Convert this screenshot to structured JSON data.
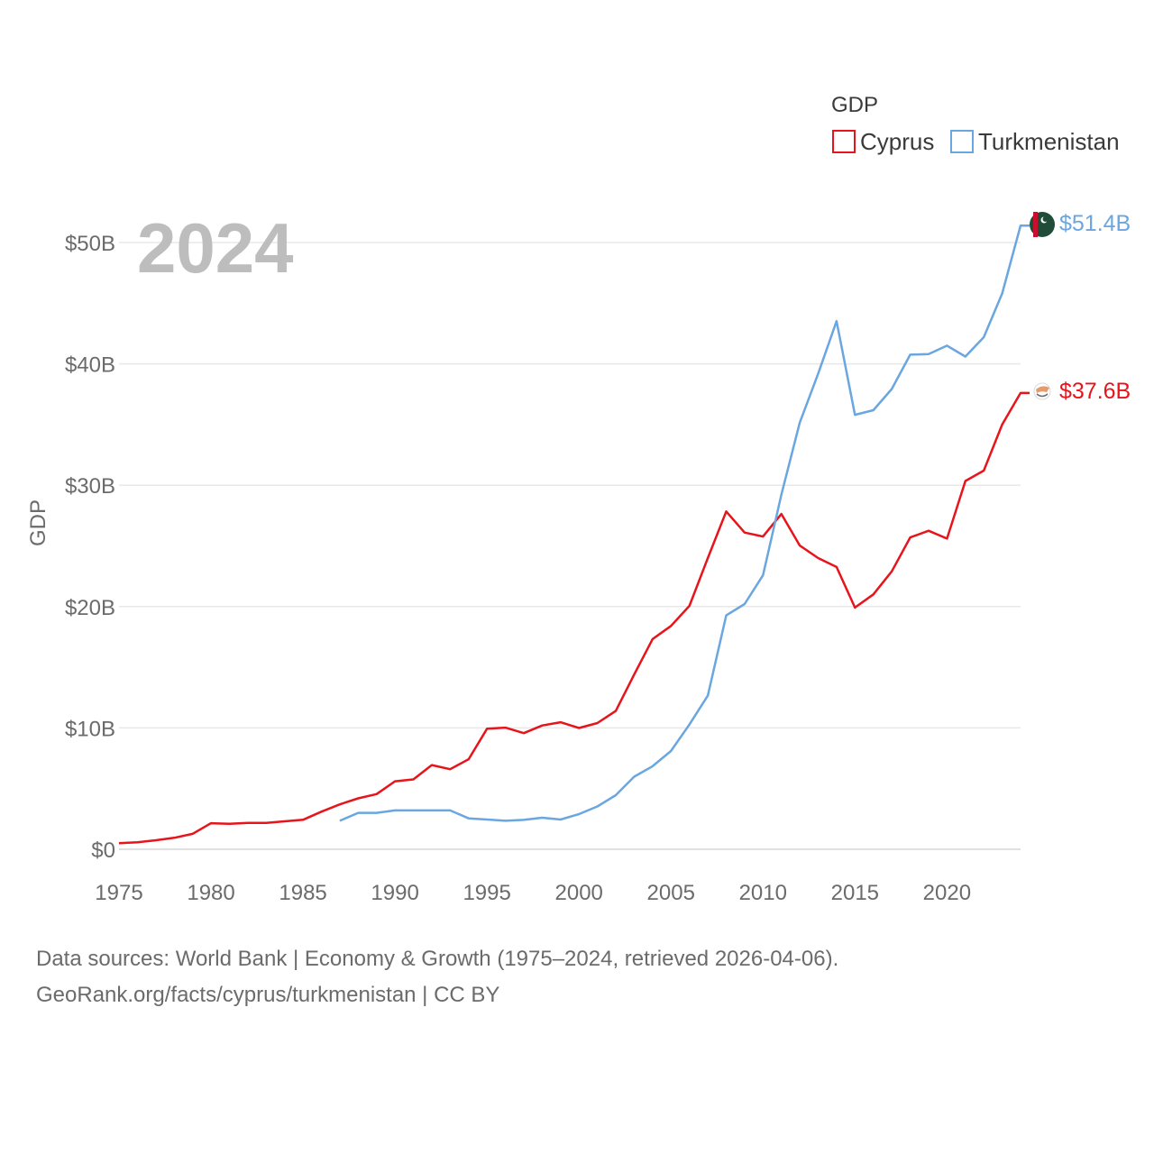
{
  "chart_data": {
    "type": "line",
    "title": "GDP",
    "current_year_label": "2024",
    "ylabel": "GDP",
    "xlabel": "",
    "xlim": [
      1975,
      2024
    ],
    "ylim": [
      0,
      50000000000
    ],
    "x_ticks": [
      1975,
      1980,
      1985,
      1990,
      1995,
      2000,
      2005,
      2010,
      2015,
      2020
    ],
    "x_tick_labels": [
      "1975",
      "1980",
      "1985",
      "1990",
      "1995",
      "2000",
      "2005",
      "2010",
      "2015",
      "2020"
    ],
    "y_ticks": [
      0,
      10000000000,
      20000000000,
      30000000000,
      40000000000,
      50000000000
    ],
    "y_tick_labels": [
      "$0",
      "$10B",
      "$20B",
      "$30B",
      "$40B",
      "$50B"
    ],
    "grid": true,
    "legend_position": "top-right",
    "series": [
      {
        "name": "Cyprus",
        "color": "#e8141b",
        "end_label": "$37.6B",
        "x": [
          1975,
          1976,
          1977,
          1978,
          1979,
          1980,
          1981,
          1982,
          1983,
          1984,
          1985,
          1986,
          1987,
          1988,
          1989,
          1990,
          1991,
          1992,
          1993,
          1994,
          1995,
          1996,
          1997,
          1998,
          1999,
          2000,
          2001,
          2002,
          2003,
          2004,
          2005,
          2006,
          2007,
          2008,
          2009,
          2010,
          2011,
          2012,
          2013,
          2014,
          2015,
          2016,
          2017,
          2018,
          2019,
          2020,
          2021,
          2022,
          2023,
          2024
        ],
        "values": [
          500000000.0,
          580000000.0,
          740000000.0,
          940000000.0,
          1270000000.0,
          2150000000.0,
          2100000000.0,
          2180000000.0,
          2180000000.0,
          2300000000.0,
          2430000000.0,
          3100000000.0,
          3700000000.0,
          4200000000.0,
          4550000000.0,
          5600000000.0,
          5760000000.0,
          6940000000.0,
          6600000000.0,
          7420000000.0,
          9930000000.0,
          10020000000.0,
          9570000000.0,
          10200000000.0,
          10470000000.0,
          9990000000.0,
          10400000000.0,
          11400000000.0,
          14400000000.0,
          17320000000.0,
          18400000000.0,
          20060000000.0,
          24000000000.0,
          27840000000.0,
          26100000000.0,
          25770000000.0,
          27630000000.0,
          25030000000.0,
          24000000000.0,
          23260000000.0,
          19920000000.0,
          21000000000.0,
          22900000000.0,
          25700000000.0,
          26250000000.0,
          25600000000.0,
          30350000000.0,
          31200000000.0,
          35000000000.0,
          37600000000.0
        ]
      },
      {
        "name": "Turkmenistan",
        "color": "#6aa6e0",
        "end_label": "$51.4B",
        "x": [
          1987,
          1988,
          1989,
          1990,
          1991,
          1992,
          1993,
          1994,
          1995,
          1996,
          1997,
          1998,
          1999,
          2000,
          2001,
          2002,
          2003,
          2004,
          2005,
          2006,
          2007,
          2008,
          2009,
          2010,
          2011,
          2012,
          2013,
          2014,
          2015,
          2016,
          2017,
          2018,
          2019,
          2020,
          2021,
          2022,
          2023,
          2024
        ],
        "values": [
          2350000000.0,
          3000000000.0,
          3000000000.0,
          3200000000.0,
          3200000000.0,
          3200000000.0,
          3200000000.0,
          2550000000.0,
          2450000000.0,
          2350000000.0,
          2420000000.0,
          2600000000.0,
          2450000000.0,
          2900000000.0,
          3530000000.0,
          4460000000.0,
          5980000000.0,
          6840000000.0,
          8100000000.0,
          10280000000.0,
          12660000000.0,
          19270000000.0,
          20210000000.0,
          22580000000.0,
          29230000000.0,
          35160000000.0,
          39200000000.0,
          43520000000.0,
          35800000000.0,
          36180000000.0,
          37930000000.0,
          40760000000.0,
          40800000000.0,
          41500000000.0,
          40600000000.0,
          42200000000.0,
          45800000000.0,
          51400000000.0
        ]
      }
    ]
  },
  "source_line1": "Data sources: World Bank | Economy & Growth (1975–2024, retrieved 2026-04-06).",
  "source_line2": "GeoRank.org/facts/cyprus/turkmenistan | CC BY"
}
